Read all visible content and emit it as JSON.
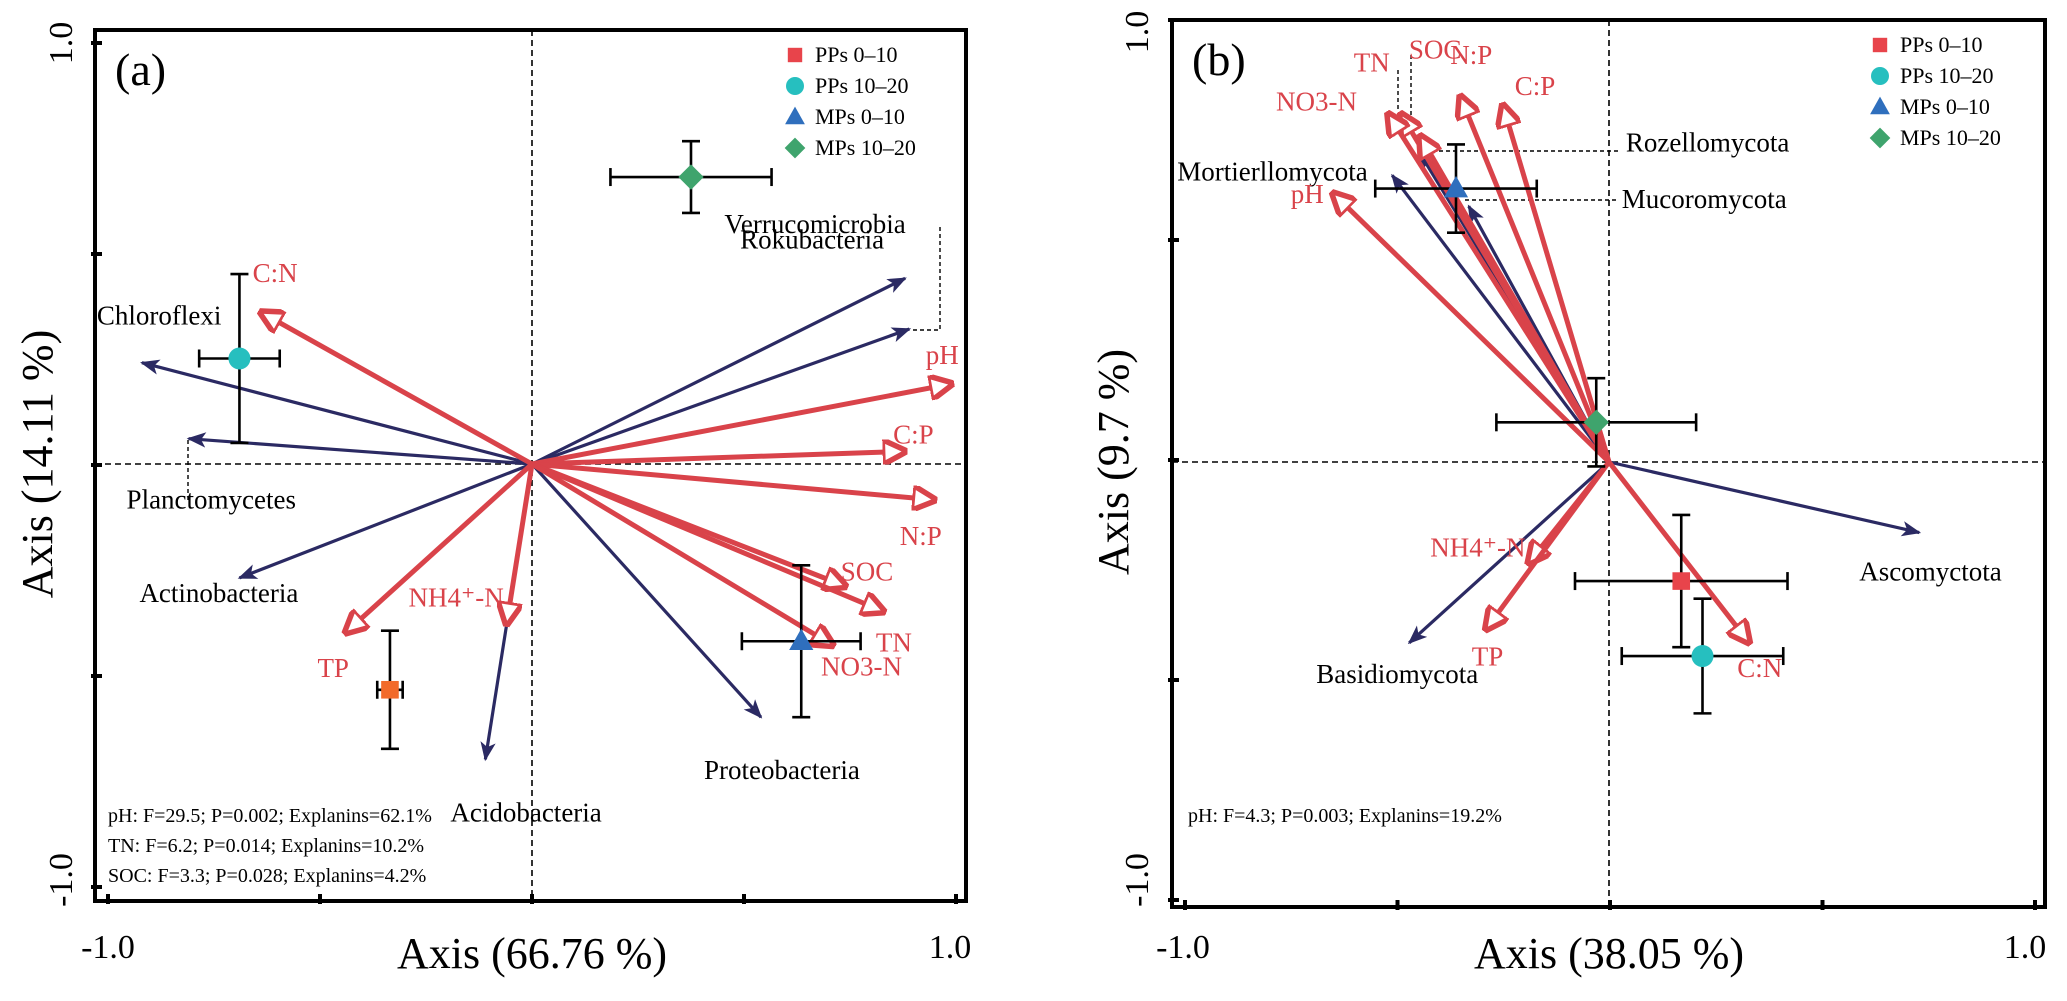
{
  "colors": {
    "env_arrow": "#d9434a",
    "taxa_arrow": "#2b2a63",
    "axis": "#000000",
    "PPs 0-10": "#e8444b",
    "PPs 0-10 (a)": "#f26a2a",
    "PPs 10-20": "#26bfbf",
    "MPs 0-10": "#2f6fbd",
    "MPs 10-20": "#3fa46d"
  },
  "chart_data": [
    {
      "type": "scatter",
      "panel_label": "(a)",
      "title": "",
      "xlabel": "Axis (66.76 %)",
      "ylabel": "Axis (14.11 %)",
      "xlim": [
        -1.0,
        1.0
      ],
      "ylim": [
        -1.0,
        1.0
      ],
      "xtick_labels": [
        "-1.0",
        "1.0"
      ],
      "ytick_labels": [
        "-1.0",
        "1.0"
      ],
      "grid": false,
      "legend_position": "top-right",
      "legend": [
        {
          "label": "PPs 0–10",
          "marker": "square"
        },
        {
          "label": "PPs 10–20",
          "marker": "circle"
        },
        {
          "label": "MPs 0–10",
          "marker": "triangle"
        },
        {
          "label": "MPs 10–20",
          "marker": "diamond"
        }
      ],
      "points": [
        {
          "group": "PPs 0-10",
          "marker": "square",
          "x": -0.335,
          "y": -0.535,
          "xerr": 0.03,
          "yerr": 0.14
        },
        {
          "group": "PPs 10-20",
          "marker": "circle",
          "x": -0.69,
          "y": 0.25,
          "xerr": 0.095,
          "yerr": 0.2
        },
        {
          "group": "MPs 0-10",
          "marker": "triangle",
          "x": 0.635,
          "y": -0.42,
          "xerr": 0.14,
          "yerr": 0.18
        },
        {
          "group": "MPs 10-20",
          "marker": "diamond",
          "x": 0.375,
          "y": 0.68,
          "xerr": 0.19,
          "yerr": 0.085
        }
      ],
      "env_arrows": [
        {
          "label": "C:N",
          "x": -0.64,
          "y": 0.36
        },
        {
          "label": "pH",
          "x": 0.99,
          "y": 0.19
        },
        {
          "label": "C:P",
          "x": 0.88,
          "y": 0.03
        },
        {
          "label": "N:P",
          "x": 0.95,
          "y": -0.085
        },
        {
          "label": "SOC",
          "x": 0.74,
          "y": -0.29
        },
        {
          "label": "TN",
          "x": 0.83,
          "y": -0.35
        },
        {
          "label": "NO3-N",
          "x": 0.71,
          "y": -0.43
        },
        {
          "label": "NH4⁺-N",
          "x": -0.06,
          "y": -0.38
        },
        {
          "label": "TP",
          "x": -0.44,
          "y": -0.4
        }
      ],
      "taxa_arrows": [
        {
          "label": "Chloroflexi",
          "x": -0.92,
          "y": 0.24
        },
        {
          "label": "Planctomycetes",
          "x": -0.81,
          "y": 0.06
        },
        {
          "label": "Actinobacteria",
          "x": -0.69,
          "y": -0.27
        },
        {
          "label": "Acidobacteria",
          "x": -0.11,
          "y": -0.7
        },
        {
          "label": "Proteobacteria",
          "x": 0.54,
          "y": -0.6
        },
        {
          "label": "Rokubacteria",
          "x": 0.88,
          "y": 0.44
        },
        {
          "label": "Verrucomicrobia",
          "x": 0.89,
          "y": 0.32
        }
      ],
      "annotations": [
        "pH: F=29.5; P=0.002; Explanins=62.1%",
        "TN: F=6.2; P=0.014; Explanins=10.2%",
        "SOC: F=3.3; P=0.028; Explanins=4.2%"
      ]
    },
    {
      "type": "scatter",
      "panel_label": "(b)",
      "title": "",
      "xlabel": "Axis (38.05 %)",
      "ylabel": "Axis (9.7 %)",
      "xlim": [
        -1.0,
        1.0
      ],
      "ylim": [
        -1.0,
        1.0
      ],
      "xtick_labels": [
        "-1.0",
        "1.0"
      ],
      "ytick_labels": [
        "-1.0",
        "1.0"
      ],
      "grid": false,
      "legend_position": "top-right",
      "legend": [
        {
          "label": "PPs 0–10",
          "marker": "square"
        },
        {
          "label": "PPs 10–20",
          "marker": "circle"
        },
        {
          "label": "MPs 0–10",
          "marker": "triangle"
        },
        {
          "label": "MPs 10–20",
          "marker": "diamond"
        }
      ],
      "points": [
        {
          "group": "PPs 0-10",
          "marker": "square",
          "x": 0.17,
          "y": -0.27,
          "xerr": 0.25,
          "yerr": 0.15
        },
        {
          "group": "PPs 10-20",
          "marker": "circle",
          "x": 0.22,
          "y": -0.44,
          "xerr": 0.19,
          "yerr": 0.13
        },
        {
          "group": "MPs 0-10",
          "marker": "triangle",
          "x": -0.36,
          "y": 0.62,
          "xerr": 0.19,
          "yerr": 0.1
        },
        {
          "group": "MPs 10-20",
          "marker": "diamond",
          "x": -0.03,
          "y": 0.09,
          "xerr": 0.235,
          "yerr": 0.1
        }
      ],
      "env_arrows": [
        {
          "label": "TN",
          "x": -0.49,
          "y": 0.79
        },
        {
          "label": "SOC",
          "x": -0.445,
          "y": 0.74
        },
        {
          "label": "NO3-N",
          "x": -0.52,
          "y": 0.79
        },
        {
          "label": "N:P",
          "x": -0.35,
          "y": 0.83
        },
        {
          "label": "C:P",
          "x": -0.25,
          "y": 0.81
        },
        {
          "label": "pH",
          "x": -0.65,
          "y": 0.61
        },
        {
          "label": "NH4⁺-N",
          "x": -0.19,
          "y": -0.23
        },
        {
          "label": "TP",
          "x": -0.29,
          "y": -0.38
        },
        {
          "label": "C:N",
          "x": 0.33,
          "y": -0.41
        }
      ],
      "taxa_arrows": [
        {
          "label": "Mortierllomycota",
          "x": -0.51,
          "y": 0.65
        },
        {
          "label": "Rozellomycota",
          "x": -0.445,
          "y": 0.7
        },
        {
          "label": "Mucoromycota",
          "x": -0.33,
          "y": 0.58
        },
        {
          "label": "Ascomyctota",
          "x": 0.73,
          "y": -0.16
        },
        {
          "label": "Basidiomycota",
          "x": -0.47,
          "y": -0.41
        }
      ],
      "annotations": [
        "pH: F=4.3; P=0.003; Explanins=19.2%"
      ]
    }
  ]
}
